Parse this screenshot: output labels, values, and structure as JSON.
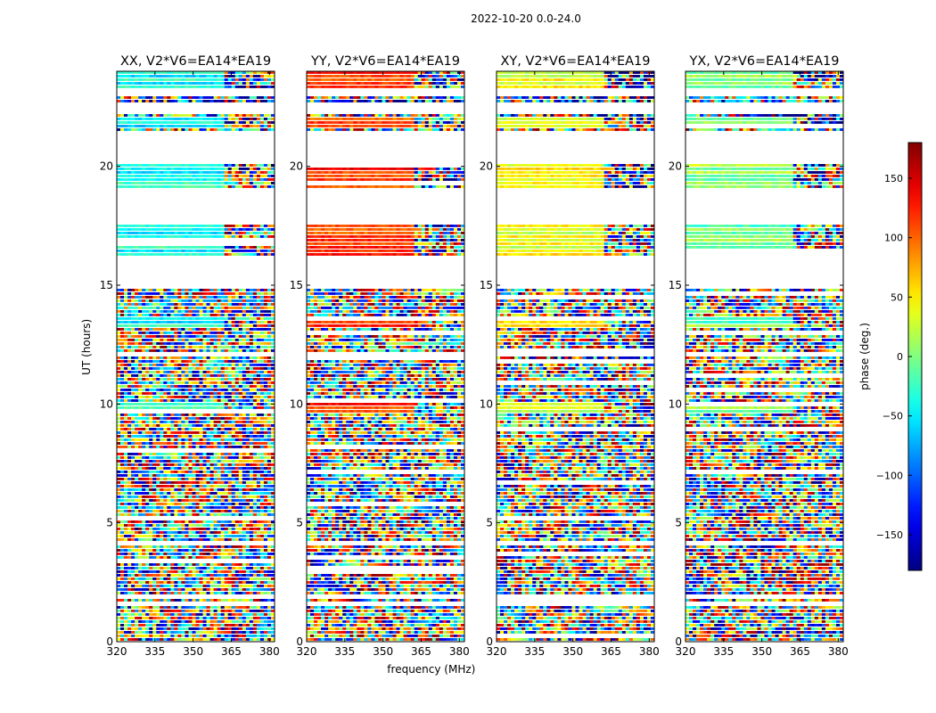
{
  "figure": {
    "suptitle": "2022-10-20 0.0-24.0"
  },
  "chart_data": {
    "type": "heatmap",
    "title": "2022-10-20 0.0-24.0",
    "xlabel": "frequency (MHz)",
    "ylabel": "UT (hours)",
    "xlim": [
      320,
      382
    ],
    "ylim": [
      0,
      24
    ],
    "x_ticks": [
      320,
      335,
      350,
      365,
      380
    ],
    "y_ticks": [
      0,
      5,
      10,
      15,
      20
    ],
    "colorbar": {
      "label": "phase (deg.)",
      "range": [
        -180,
        180
      ],
      "ticks": [
        150,
        100,
        50,
        0,
        -50,
        -100,
        -150
      ],
      "tick_labels": [
        "150",
        "100",
        "50",
        "0",
        "−50",
        "−100",
        "−150"
      ],
      "colormap": "jet"
    },
    "panels": [
      {
        "title": "XX, V2*V6=EA14*EA19",
        "polarization": "XX",
        "baseline_phase_deg": -40
      },
      {
        "title": "YY, V2*V6=EA14*EA19",
        "polarization": "YY",
        "baseline_phase_deg": 120
      },
      {
        "title": "XY, V2*V6=EA14*EA19",
        "polarization": "XY",
        "baseline_phase_deg": 40
      },
      {
        "title": "YX, V2*V6=EA14*EA19",
        "polarization": "YX",
        "baseline_phase_deg": 0
      }
    ],
    "gap_bands_ut": [
      [
        22.95,
        23.2
      ],
      [
        22.2,
        22.65
      ],
      [
        21.3,
        21.4
      ],
      [
        20.15,
        21.25
      ],
      [
        17.6,
        19.0
      ],
      [
        15.9,
        16.15
      ],
      [
        14.9,
        15.9
      ],
      [
        11.95,
        12.2
      ],
      [
        4.0,
        4.2
      ],
      [
        1.75,
        1.95
      ],
      [
        1.45,
        1.6
      ]
    ],
    "coherent_bands_ut": [
      [
        23.3,
        24.0
      ],
      [
        21.55,
        22.1
      ],
      [
        18.9,
        20.1
      ],
      [
        16.2,
        17.5
      ],
      [
        13.2,
        13.6
      ],
      [
        9.6,
        10.05
      ]
    ],
    "coherent_freq_max_mhz": 362
  }
}
